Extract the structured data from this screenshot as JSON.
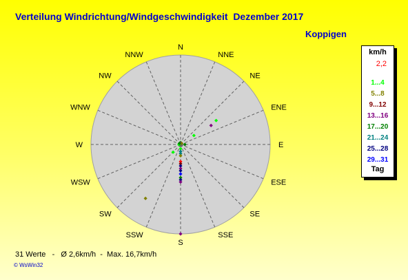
{
  "title": "Verteilung Windrichtung/Windgeschwindigkeit  Dezember 2017",
  "station": "Koppigen",
  "footer": "31 Werte   -   Ø 2,6km/h  -  Max. 16,7km/h",
  "copyright": "© WsWin32",
  "legend": {
    "unit": "km/h",
    "calm_label": "2,2",
    "calm_color": "#ff0000",
    "bins": [
      {
        "label": "1...4",
        "color": "#00ff00"
      },
      {
        "label": "5...8",
        "color": "#808000"
      },
      {
        "label": "9...12",
        "color": "#800000"
      },
      {
        "label": "13...16",
        "color": "#800080"
      },
      {
        "label": "17...20",
        "color": "#008000"
      },
      {
        "label": "21...24",
        "color": "#008080"
      },
      {
        "label": "25...28",
        "color": "#000080"
      },
      {
        "label": "29...31",
        "color": "#0000ff"
      }
    ],
    "tag_label": "Tag"
  },
  "chart_data": {
    "type": "scatter",
    "subtype": "wind-rose-polar",
    "directions": [
      "N",
      "NNE",
      "NE",
      "ENE",
      "E",
      "ESE",
      "SE",
      "SSE",
      "S",
      "SSW",
      "SW",
      "WSW",
      "W",
      "WNW",
      "NW",
      "NNW"
    ],
    "radial_max_kmh": 16.7,
    "points": [
      {
        "dir_deg": 0,
        "speed_kmh": 0.4,
        "color": "#00ff00"
      },
      {
        "dir_deg": 0,
        "speed_kmh": 0.3,
        "color": "#800080"
      },
      {
        "dir_deg": 45,
        "speed_kmh": 0.3,
        "color": "#808000"
      },
      {
        "dir_deg": 90,
        "speed_kmh": 0.8,
        "color": "#008000"
      },
      {
        "dir_deg": 270,
        "speed_kmh": 0.3,
        "color": "#00ff00"
      },
      {
        "dir_deg": 315,
        "speed_kmh": 0.3,
        "color": "#008000"
      },
      {
        "dir_deg": 56,
        "speed_kmh": 8.0,
        "color": "#00ff00"
      },
      {
        "dir_deg": 58,
        "speed_kmh": 6.7,
        "color": "#800080"
      },
      {
        "dir_deg": 56,
        "speed_kmh": 3.0,
        "color": "#00ff00"
      },
      {
        "dir_deg": 224,
        "speed_kmh": 2.0,
        "color": "#00ff00"
      },
      {
        "dir_deg": 180,
        "speed_kmh": 0.8,
        "color": "#00ff00"
      },
      {
        "dir_deg": 180,
        "speed_kmh": 1.3,
        "color": "#008080"
      },
      {
        "dir_deg": 180,
        "speed_kmh": 1.7,
        "color": "#008080"
      },
      {
        "dir_deg": 180,
        "speed_kmh": 2.1,
        "color": "#808000"
      },
      {
        "dir_deg": 180,
        "speed_kmh": 3.2,
        "color": "#ff0000"
      },
      {
        "dir_deg": 180,
        "speed_kmh": 3.6,
        "color": "#800000"
      },
      {
        "dir_deg": 180,
        "speed_kmh": 4.0,
        "color": "#000080"
      },
      {
        "dir_deg": 180,
        "speed_kmh": 4.5,
        "color": "#800080"
      },
      {
        "dir_deg": 180,
        "speed_kmh": 4.9,
        "color": "#000080"
      },
      {
        "dir_deg": 180,
        "speed_kmh": 5.5,
        "color": "#0000ff"
      },
      {
        "dir_deg": 180,
        "speed_kmh": 6.2,
        "color": "#008000"
      },
      {
        "dir_deg": 180,
        "speed_kmh": 6.6,
        "color": "#000080"
      },
      {
        "dir_deg": 180,
        "speed_kmh": 7.0,
        "color": "#800080"
      },
      {
        "dir_deg": 180,
        "speed_kmh": 16.7,
        "color": "#800080"
      },
      {
        "dir_deg": 213,
        "speed_kmh": 12.0,
        "color": "#808000"
      }
    ]
  }
}
